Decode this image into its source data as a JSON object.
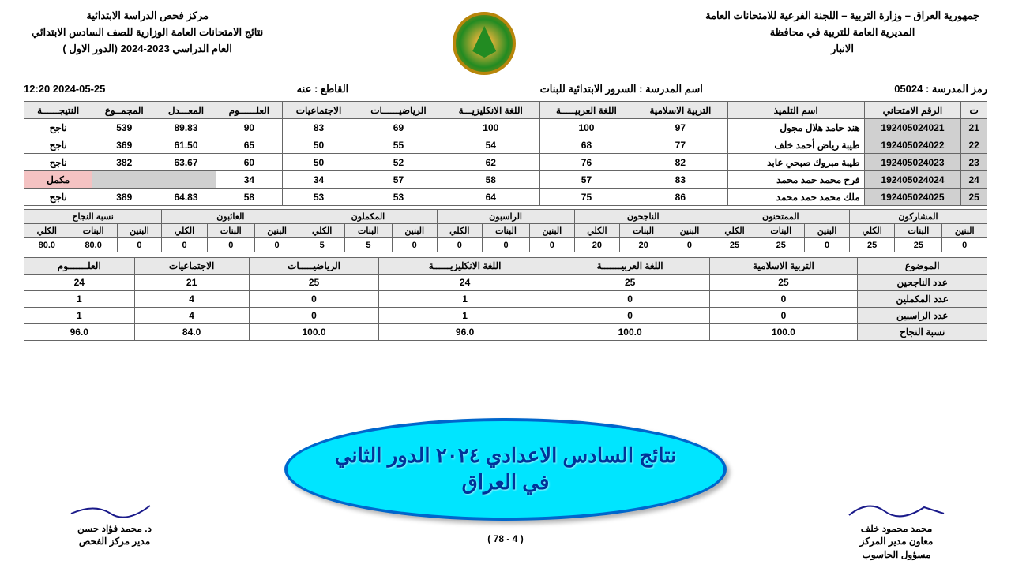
{
  "header": {
    "right_lines": [
      "جمهورية العراق – وزارة التربية – اللجنة الفرعية للامتحانات العامة",
      "المديرية العامة للتربية في محافظة",
      "الانبار"
    ],
    "left_lines": [
      "مركز فحص الدراسة الابتدائية",
      "نتائج الامتحانات العامة الوزارية للصف السادس الابتدائي",
      "العام الدراسي 2023-2024 (الدور الاول )"
    ]
  },
  "info": {
    "code_label": "رمز المدرسة :",
    "code": "05024",
    "name_label": "اسم المدرسة :",
    "name": "السرور الابتدائية للبنات",
    "sector_label": "القاطع :",
    "sector": "عنه",
    "datetime": "2024-05-25  12:20"
  },
  "main_table": {
    "headers": [
      "ت",
      "الرقم الامتحاني",
      "اسم التلميذ",
      "التربية الاسلامية",
      "اللغة العربيـــــة",
      "اللغة الانكليزيـــة",
      "الرياضيــــــات",
      "الاجتماعيات",
      "العلــــــوم",
      "المعـــدل",
      "المجمــوع",
      "النتيجــــــة"
    ],
    "rows": [
      {
        "seq": "21",
        "exam": "192405024021",
        "name": "هند حامد هلال مجول",
        "c1": "97",
        "c2": "100",
        "c3": "100",
        "c4": "69",
        "c5": "83",
        "c6": "90",
        "avg": "89.83",
        "sum": "539",
        "res": "ناجح",
        "fail": false
      },
      {
        "seq": "22",
        "exam": "192405024022",
        "name": "طيبة رياض أحمد خلف",
        "c1": "77",
        "c2": "68",
        "c3": "54",
        "c4": "55",
        "c5": "50",
        "c6": "65",
        "avg": "61.50",
        "sum": "369",
        "res": "ناجح",
        "fail": false
      },
      {
        "seq": "23",
        "exam": "192405024023",
        "name": "طيبة مبروك صبحي عابد",
        "c1": "82",
        "c2": "76",
        "c3": "62",
        "c4": "52",
        "c5": "50",
        "c6": "60",
        "avg": "63.67",
        "sum": "382",
        "res": "ناجح",
        "fail": false
      },
      {
        "seq": "24",
        "exam": "192405024024",
        "name": "فرح محمد حمد محمد",
        "c1": "83",
        "c2": "57",
        "c3": "58",
        "c4": "57",
        "c5": "34",
        "c6": "34",
        "avg": "",
        "sum": "",
        "res": "مكمل",
        "fail": true
      },
      {
        "seq": "25",
        "exam": "192405024025",
        "name": "ملك محمد حمد محمد",
        "c1": "86",
        "c2": "75",
        "c3": "64",
        "c4": "53",
        "c5": "53",
        "c6": "58",
        "avg": "64.83",
        "sum": "389",
        "res": "ناجح",
        "fail": false
      }
    ]
  },
  "stats_table": {
    "groups": [
      "المشاركون",
      "الممتحنون",
      "الناجحون",
      "الراسبون",
      "المكملون",
      "الغائبون",
      "نسبة النجاح"
    ],
    "subheaders": [
      "البنين",
      "البنات",
      "الكلي"
    ],
    "values": [
      [
        "0",
        "25",
        "25"
      ],
      [
        "0",
        "25",
        "25"
      ],
      [
        "0",
        "20",
        "20"
      ],
      [
        "0",
        "0",
        "0"
      ],
      [
        "0",
        "5",
        "5"
      ],
      [
        "0",
        "0",
        "0"
      ],
      [
        "0",
        "80.0",
        "80.0"
      ]
    ]
  },
  "subject_table": {
    "headers": [
      "الموضوع",
      "التربية الاسلامية",
      "اللغة العربيـــــــة",
      "اللغة الانكليزيــــــة",
      "الرياضيـــــات",
      "الاجتماعيات",
      "العلـــــــوم"
    ],
    "rows": [
      {
        "label": "عدد الناجحين",
        "v": [
          "25",
          "25",
          "24",
          "25",
          "21",
          "24"
        ]
      },
      {
        "label": "عدد المكملين",
        "v": [
          "0",
          "0",
          "1",
          "0",
          "4",
          "1"
        ]
      },
      {
        "label": "عدد الراسبين",
        "v": [
          "0",
          "0",
          "1",
          "0",
          "4",
          "1"
        ]
      },
      {
        "label": "نسبة النجاح",
        "v": [
          "100.0",
          "100.0",
          "96.0",
          "100.0",
          "84.0",
          "96.0"
        ]
      }
    ]
  },
  "overlay": {
    "line1": "نتائج السادس الاعدادي ٢٠٢٤ الدور الثاني",
    "line2": "في العراق"
  },
  "footer": {
    "right_name": "محمد محمود خلف",
    "right_title1": "معاون مدير المركز",
    "right_title2": "مسؤول الحاسوب",
    "left_name": "د. محمد فؤاد حسن",
    "left_title": "مدير مركز الفحص",
    "page": "( 4 - 78 )"
  }
}
